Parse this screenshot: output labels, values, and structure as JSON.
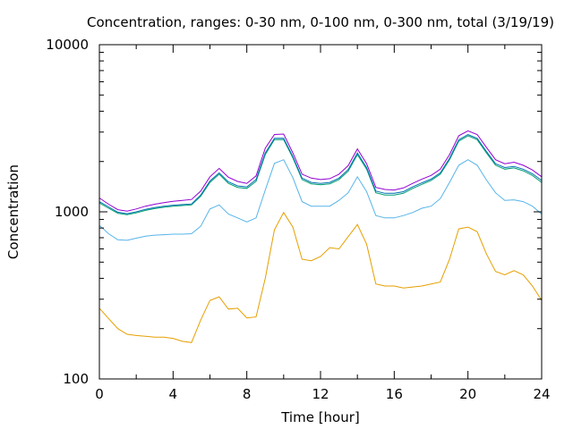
{
  "chart_data": {
    "type": "line",
    "title": "Concentration, ranges: 0-30 nm, 0-100 nm, 0-300 nm, total (3/19/19)",
    "xlabel": "Time [hour]",
    "ylabel": "Concentration",
    "xlim": [
      0,
      24
    ],
    "ylim": [
      100,
      10000
    ],
    "yscale": "log",
    "grid": false,
    "legend": "none",
    "x_ticks": [
      0,
      4,
      8,
      12,
      16,
      20,
      24
    ],
    "x_tick_labels": [
      "0",
      "4",
      "8",
      "12",
      "16",
      "20",
      "24"
    ],
    "x_minor_ticks": [
      2,
      6,
      10,
      14,
      18,
      22
    ],
    "y_ticks": [
      100,
      1000,
      10000
    ],
    "y_tick_labels": [
      "100",
      "1000",
      "10000"
    ],
    "x": [
      0,
      0.5,
      1,
      1.5,
      2,
      2.5,
      3,
      3.5,
      4,
      4.5,
      5,
      5.5,
      6,
      6.5,
      7,
      7.5,
      8,
      8.5,
      9,
      9.5,
      10,
      10.5,
      11,
      11.5,
      12,
      12.5,
      13,
      13.5,
      14,
      14.5,
      15,
      15.5,
      16,
      16.5,
      17,
      17.5,
      18,
      18.5,
      19,
      19.5,
      20,
      20.5,
      21,
      21.5,
      22,
      22.5,
      23,
      23.5,
      24
    ],
    "series": [
      {
        "color": "#e69f00",
        "values": [
          265,
          230,
          200,
          185,
          182,
          180,
          178,
          178,
          175,
          168,
          165,
          225,
          295,
          310,
          262,
          265,
          232,
          235,
          400,
          780,
          990,
          810,
          520,
          510,
          540,
          610,
          600,
          710,
          840,
          640,
          370,
          360,
          360,
          350,
          355,
          360,
          370,
          380,
          520,
          790,
          810,
          760,
          560,
          440,
          420,
          445,
          420,
          360,
          295
        ]
      },
      {
        "color": "#56b4e9",
        "values": [
          830,
          740,
          680,
          675,
          695,
          715,
          725,
          730,
          735,
          735,
          740,
          820,
          1040,
          1100,
          970,
          920,
          870,
          920,
          1350,
          1950,
          2050,
          1600,
          1150,
          1080,
          1080,
          1080,
          1170,
          1300,
          1620,
          1320,
          950,
          920,
          920,
          950,
          990,
          1050,
          1080,
          1200,
          1500,
          1900,
          2050,
          1900,
          1550,
          1300,
          1170,
          1180,
          1150,
          1080,
          970
        ]
      },
      {
        "color": "#009e73",
        "values": [
          1130,
          1050,
          980,
          960,
          985,
          1020,
          1045,
          1065,
          1080,
          1090,
          1100,
          1240,
          1500,
          1680,
          1480,
          1400,
          1380,
          1520,
          2200,
          2700,
          2700,
          2100,
          1560,
          1470,
          1450,
          1470,
          1560,
          1750,
          2200,
          1800,
          1300,
          1260,
          1260,
          1290,
          1380,
          1460,
          1540,
          1680,
          2050,
          2650,
          2850,
          2700,
          2250,
          1900,
          1800,
          1830,
          1760,
          1650,
          1500
        ]
      },
      {
        "color": "#0072b2",
        "values": [
          1150,
          1070,
          995,
          975,
          1000,
          1035,
          1060,
          1080,
          1095,
          1105,
          1115,
          1260,
          1530,
          1710,
          1510,
          1430,
          1410,
          1560,
          2250,
          2750,
          2760,
          2140,
          1590,
          1500,
          1480,
          1500,
          1590,
          1790,
          2250,
          1840,
          1330,
          1290,
          1290,
          1320,
          1410,
          1490,
          1570,
          1710,
          2090,
          2700,
          2900,
          2750,
          2300,
          1940,
          1840,
          1870,
          1800,
          1690,
          1540
        ]
      },
      {
        "color": "#9400d3",
        "values": [
          1210,
          1110,
          1030,
          1010,
          1040,
          1080,
          1110,
          1135,
          1155,
          1170,
          1185,
          1330,
          1620,
          1820,
          1610,
          1520,
          1480,
          1640,
          2400,
          2900,
          2920,
          2250,
          1680,
          1590,
          1560,
          1580,
          1680,
          1890,
          2380,
          1940,
          1400,
          1360,
          1350,
          1390,
          1480,
          1570,
          1650,
          1800,
          2200,
          2850,
          3050,
          2900,
          2430,
          2050,
          1940,
          1980,
          1900,
          1780,
          1620
        ]
      }
    ]
  }
}
